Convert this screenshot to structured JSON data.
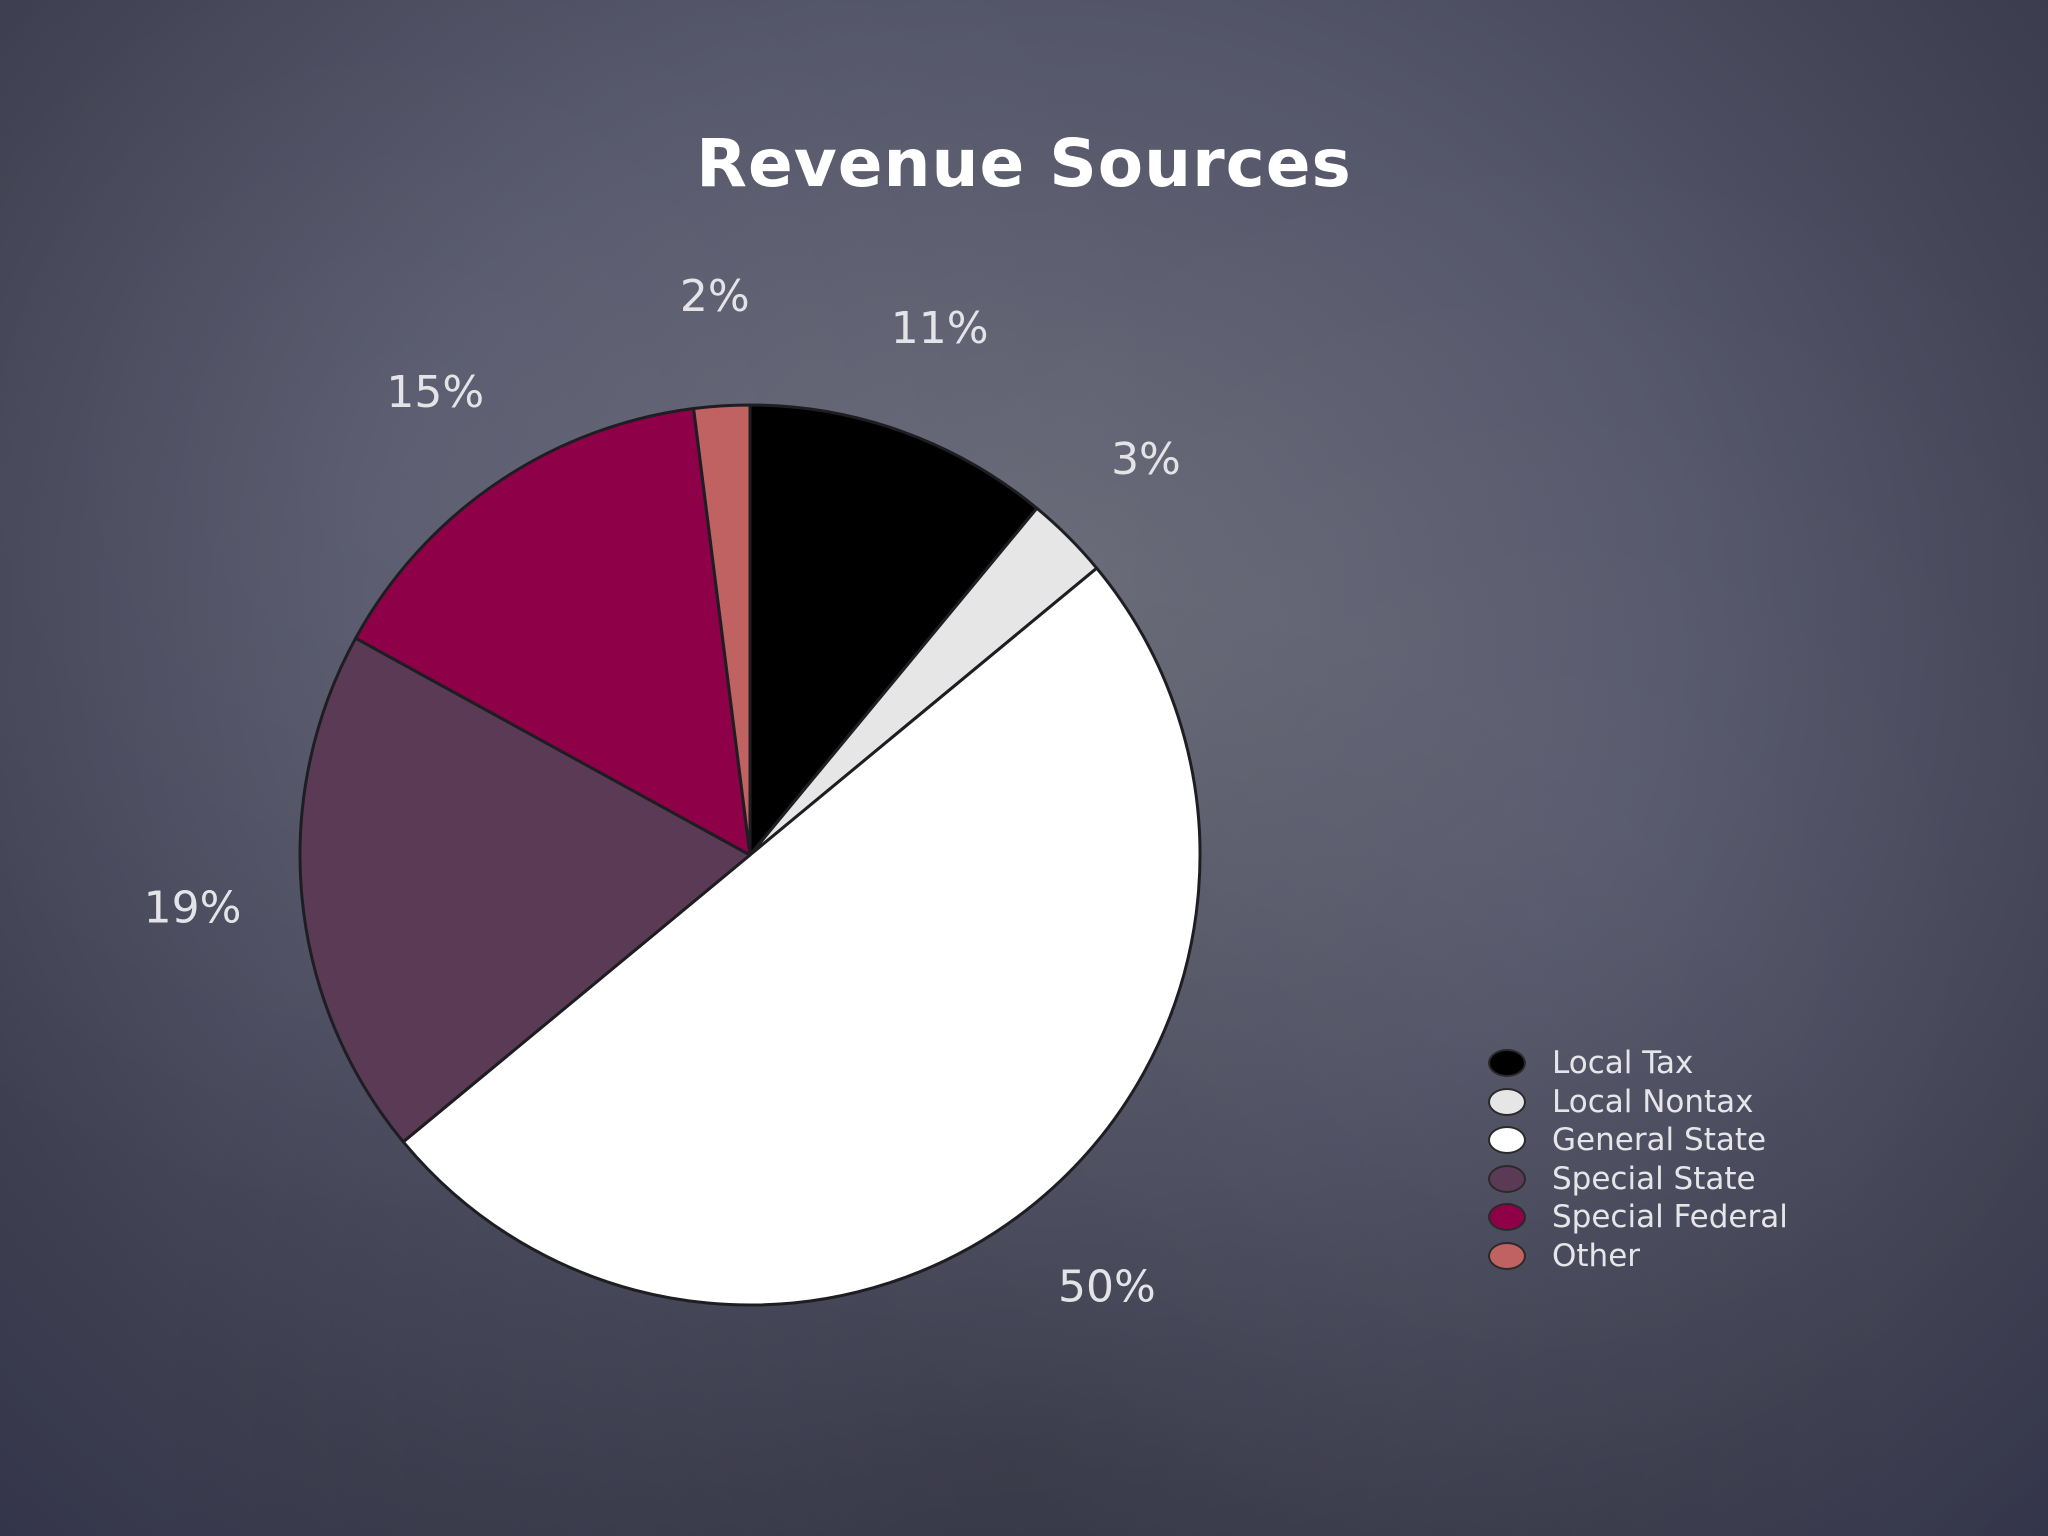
{
  "chart_data": {
    "type": "pie",
    "title": "Revenue Sources",
    "categories": [
      "Local Tax",
      "Local Nontax",
      "General State",
      "Special State",
      "Special Federal",
      "Other"
    ],
    "values": [
      11,
      3,
      50,
      19,
      15,
      2
    ],
    "value_labels": [
      "11%",
      "3%",
      "50%",
      "19%",
      "15%",
      "2%"
    ],
    "colors": [
      "#000000",
      "#e6e6e6",
      "#ffffff",
      "#5b3a55",
      "#8e0048",
      "#c06262"
    ],
    "legend": {
      "position": "bottom-right",
      "entries": [
        "Local Tax",
        "Local Nontax",
        "General State",
        "Special State",
        "Special Federal",
        "Other"
      ]
    }
  }
}
